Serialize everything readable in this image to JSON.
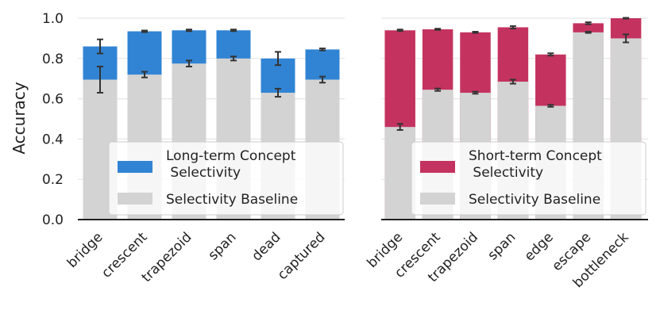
{
  "chart_data": [
    {
      "type": "bar",
      "stacked": "overlay",
      "ylabel": "Accuracy",
      "ylim": [
        0.0,
        1.0
      ],
      "yticks": [
        "0.0",
        "0.2",
        "0.4",
        "0.6",
        "0.8",
        "1.0"
      ],
      "grid": true,
      "legend_position": "bottom-right",
      "categories": [
        "bridge",
        "crescent",
        "trapezoid",
        "span",
        "dead",
        "captured"
      ],
      "series": [
        {
          "name": "Long-term Concept Selectivity",
          "legend_lines": [
            "Long-term Concept",
            " Selectivity"
          ],
          "color": "#3184d4",
          "values": [
            0.86,
            0.935,
            0.94,
            0.94,
            0.8,
            0.845
          ],
          "errors": [
            0.035,
            0.004,
            0.004,
            0.004,
            0.033,
            0.005
          ]
        },
        {
          "name": "Selectivity Baseline",
          "legend_lines": [
            "Selectivity Baseline"
          ],
          "color": "#d3d3d3",
          "values": [
            0.695,
            0.72,
            0.775,
            0.8,
            0.63,
            0.695
          ],
          "errors": [
            0.065,
            0.014,
            0.015,
            0.01,
            0.02,
            0.015
          ]
        }
      ]
    },
    {
      "type": "bar",
      "stacked": "overlay",
      "ylabel": "",
      "ylim": [
        0.0,
        1.0
      ],
      "yticks": [],
      "grid": true,
      "legend_position": "bottom-right",
      "categories": [
        "bridge",
        "crescent",
        "trapezoid",
        "span",
        "edge",
        "escape",
        "bottleneck"
      ],
      "series": [
        {
          "name": "Short-term Concept Selectivity",
          "legend_lines": [
            "Short-term Concept",
            " Selectivity"
          ],
          "color": "#c4335f",
          "values": [
            0.94,
            0.945,
            0.93,
            0.955,
            0.82,
            0.975,
            1.0
          ],
          "errors": [
            0.004,
            0.003,
            0.003,
            0.006,
            0.006,
            0.005,
            0.002
          ]
        },
        {
          "name": "Selectivity Baseline",
          "legend_lines": [
            "Selectivity Baseline"
          ],
          "color": "#d3d3d3",
          "values": [
            0.46,
            0.645,
            0.63,
            0.685,
            0.565,
            0.93,
            0.9
          ],
          "errors": [
            0.015,
            0.006,
            0.005,
            0.01,
            0.005,
            0.003,
            0.02
          ]
        }
      ]
    }
  ]
}
